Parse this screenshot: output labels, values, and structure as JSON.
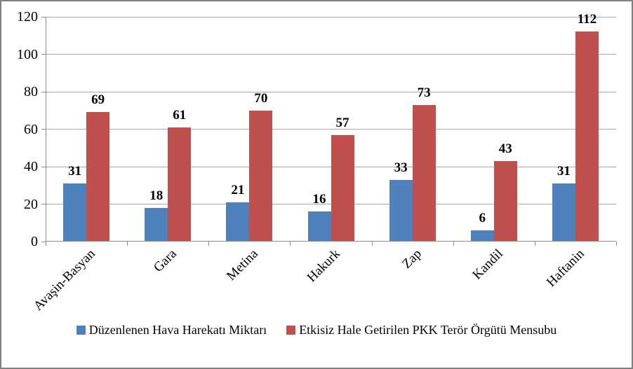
{
  "chart_data": {
    "type": "bar",
    "title": "",
    "xlabel": "",
    "ylabel": "",
    "categories": [
      "Avaşin-Basyan",
      "Gara",
      "Metina",
      "Hakurk",
      "Zap",
      "Kandil",
      "Haftanin"
    ],
    "series": [
      {
        "name": "Düzenlenen Hava Harekatı Miktarı",
        "color": "#4f81bd",
        "values": [
          31,
          18,
          21,
          16,
          33,
          6,
          31
        ]
      },
      {
        "name": "Etkisiz Hale Getirilen PKK Terör Örgütü Mensubu",
        "color": "#c0504d",
        "values": [
          69,
          61,
          70,
          57,
          73,
          43,
          112
        ]
      }
    ],
    "y_ticks": [
      0,
      20,
      40,
      60,
      80,
      100,
      120
    ],
    "ylim": [
      0,
      120
    ],
    "grid": true,
    "legend_position": "bottom",
    "data_labels": true
  },
  "colors": {
    "gridline": "#a6a6a6",
    "axis": "#8c8c8c",
    "border": "#7f7f7f",
    "text": "#000000",
    "background": "#ffffff"
  }
}
